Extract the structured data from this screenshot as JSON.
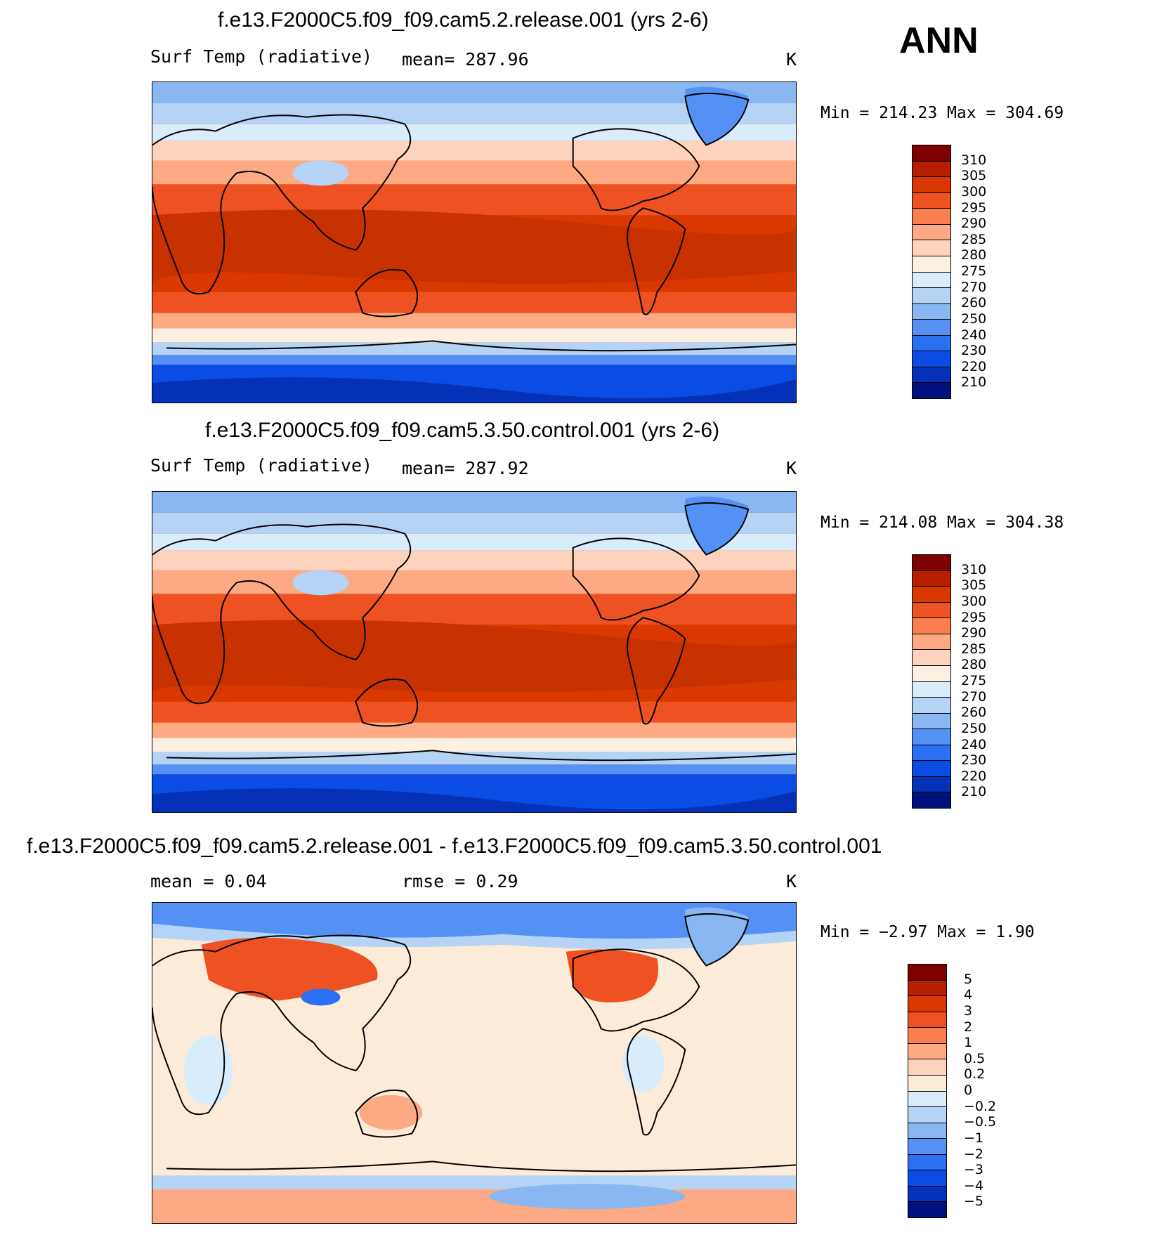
{
  "season": "ANN",
  "panels": [
    {
      "title": "f.e13.F2000C5.f09_f09.cam5.2.release.001 (yrs 2-6)",
      "variable": "Surf Temp (radiative)",
      "stat": "mean=  287.96",
      "units": "K",
      "minmax": "Min  =  214.23  Max  =  304.69",
      "colorbar": {
        "colors": [
          "#7f0000",
          "#b61f00",
          "#d93800",
          "#ee5222",
          "#fb7f4e",
          "#fca984",
          "#fdd3bd",
          "#fdf0e3",
          "#d9ecfb",
          "#b5d3f5",
          "#8ab6f2",
          "#5591f5",
          "#2b6ff2",
          "#0b4de4",
          "#0431b8",
          "#00117e"
        ],
        "labels": [
          "310",
          "305",
          "300",
          "295",
          "290",
          "285",
          "280",
          "275",
          "270",
          "260",
          "250",
          "240",
          "230",
          "220",
          "210"
        ]
      }
    },
    {
      "title": "f.e13.F2000C5.f09_f09.cam5.3.50.control.001 (yrs 2-6)",
      "variable": "Surf Temp (radiative)",
      "stat": "mean=  287.92",
      "units": "K",
      "minmax": "Min  =  214.08  Max  =  304.38",
      "colorbar": {
        "colors": [
          "#7f0000",
          "#b61f00",
          "#d93800",
          "#ee5222",
          "#fb7f4e",
          "#fca984",
          "#fdd3bd",
          "#fdf0e3",
          "#d9ecfb",
          "#b5d3f5",
          "#8ab6f2",
          "#5591f5",
          "#2b6ff2",
          "#0b4de4",
          "#0431b8",
          "#00117e"
        ],
        "labels": [
          "310",
          "305",
          "300",
          "295",
          "290",
          "285",
          "280",
          "275",
          "270",
          "260",
          "250",
          "240",
          "230",
          "220",
          "210"
        ]
      }
    },
    {
      "title": "f.e13.F2000C5.f09_f09.cam5.2.release.001 - f.e13.F2000C5.f09_f09.cam5.3.50.control.001",
      "stat_left": "mean =     0.04",
      "stat_right": "rmse =     0.29",
      "units": "K",
      "minmax": "Min  =    −2.97  Max  =     1.90",
      "colorbar": {
        "colors": [
          "#7f0000",
          "#b61f00",
          "#d93800",
          "#ee5222",
          "#fb7f4e",
          "#fca984",
          "#fdd3bd",
          "#fdebd9",
          "#d9ecfb",
          "#b5d3f5",
          "#8ab6f2",
          "#5591f5",
          "#2b6ff2",
          "#0b4de4",
          "#0431b8",
          "#00117e"
        ],
        "labels": [
          "5",
          "4",
          "3",
          "2",
          "1",
          "0.5",
          "0.2",
          "0",
          "−0.2",
          "−0.5",
          "−1",
          "−2",
          "−3",
          "−4",
          "−5"
        ]
      }
    }
  ]
}
